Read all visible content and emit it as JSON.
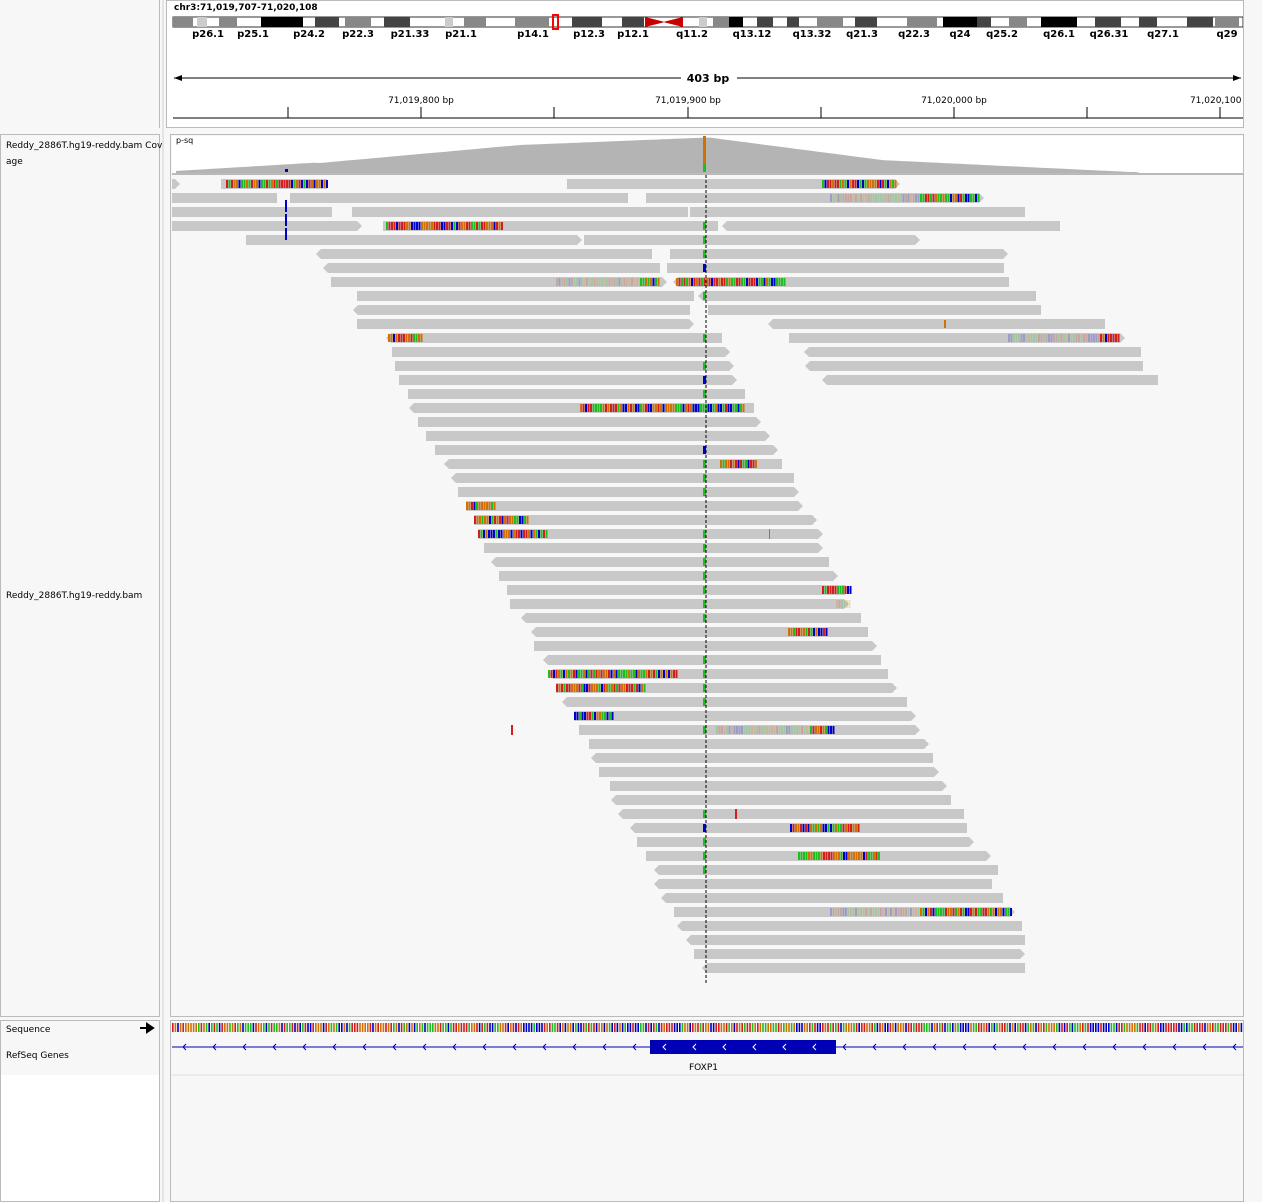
{
  "header": {
    "locus": "chr3:71,019,707-71,020,108",
    "span_label": "403 bp",
    "ruler_ticks": [
      "71,019,800 bp",
      "71,019,900 bp",
      "71,020,000 bp",
      "71,020,100 b"
    ]
  },
  "ideogram": {
    "bands": [
      "p26.1",
      "p25.1",
      "p24.2",
      "p22.3",
      "p21.33",
      "p21.1",
      "p14.1",
      "p12.3",
      "p12.1",
      "q11.2",
      "q13.12",
      "q13.32",
      "q21.3",
      "q22.3",
      "q24",
      "q25.2",
      "q26.1",
      "q26.31",
      "q27.1",
      "q29"
    ]
  },
  "tracks": {
    "coverage_name": "Reddy_2886T.hg19-reddy.bam Coverage",
    "coverage_name_line1": "Reddy_2886T.hg19-reddy.bam Cov",
    "coverage_name_line2": "age",
    "coverage_badge": "p-sq",
    "alignment_name": "Reddy_2886T.hg19-reddy.bam",
    "sequence_name": "Sequence",
    "refseq_name": "RefSeq Genes",
    "gene_label": "FOXP1"
  },
  "colors": {
    "read": "#c8c8c8",
    "coverage": "#b4b4b4",
    "gene": "#0000b4",
    "base_A": "#1ebe1e",
    "base_C": "#0000c8",
    "base_G": "#d17105",
    "base_T": "#d21e1e"
  }
}
